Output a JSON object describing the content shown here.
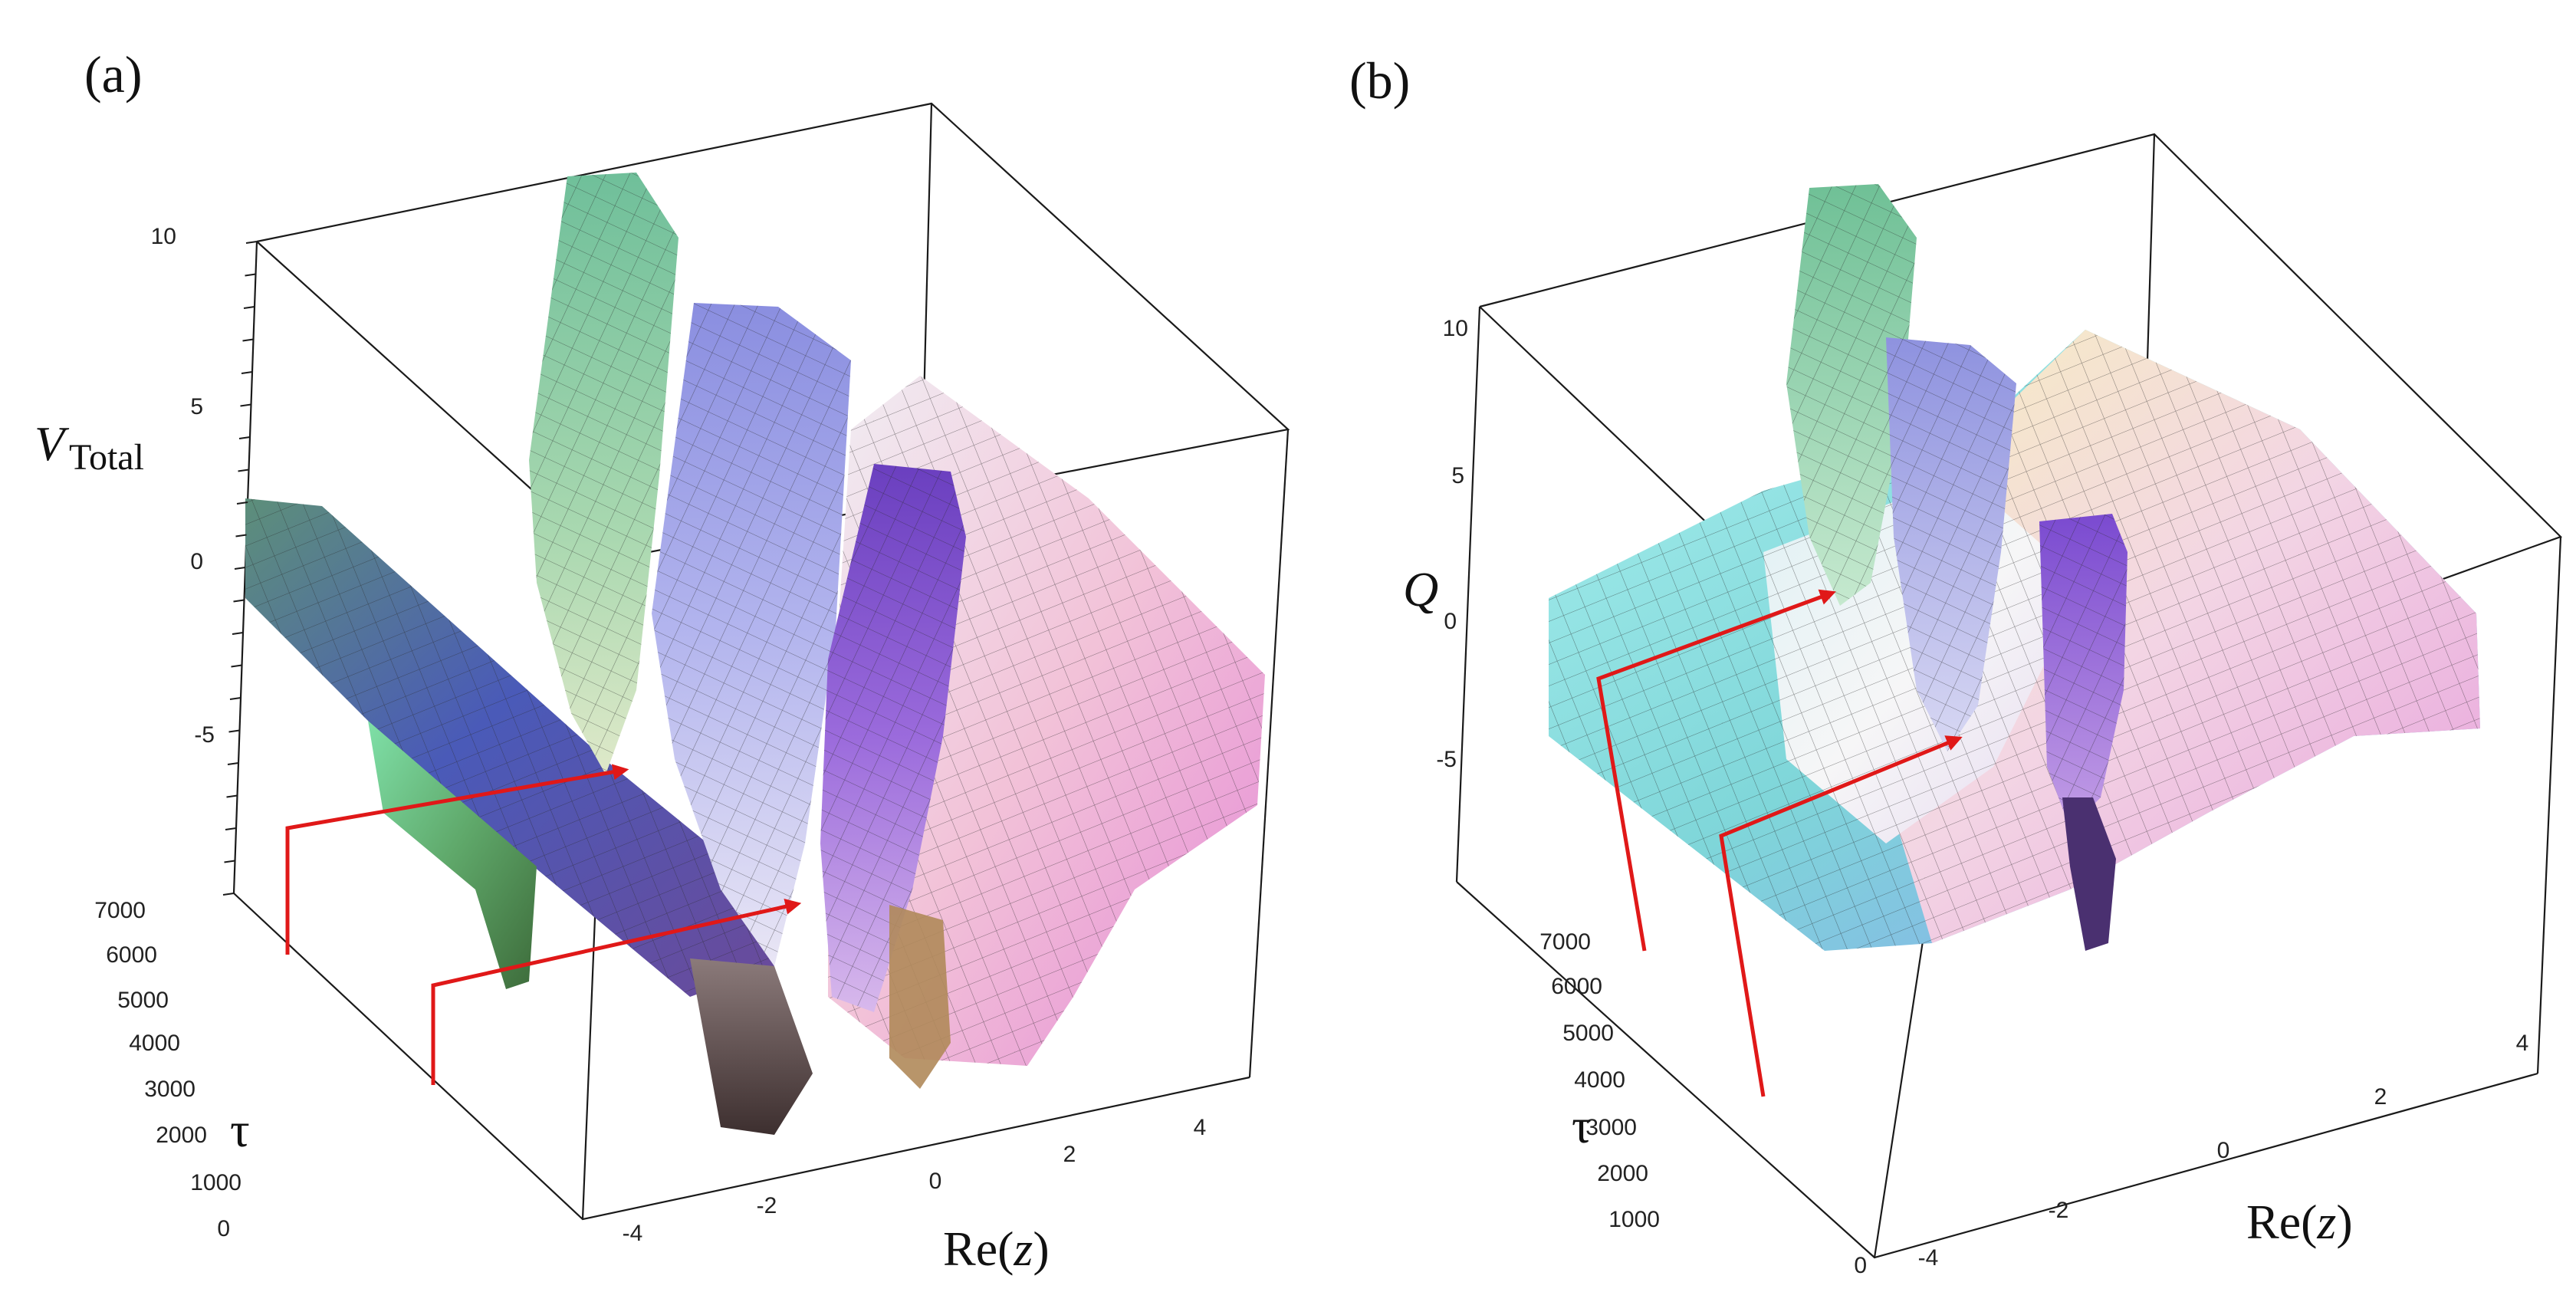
{
  "figure": {
    "accent_color": "#e01818"
  },
  "chart_data": [
    {
      "type": "surface3d",
      "panel_label": "(a)",
      "zlabel_main": "V",
      "zlabel_sub": "Total",
      "xlabel_main": "Re",
      "xlabel_var": "z",
      "ylabel": "τ",
      "x_ticks": [
        "-4",
        "-2",
        "0",
        "2",
        "4"
      ],
      "y_ticks": [
        "0",
        "1000",
        "2000",
        "3000",
        "4000",
        "5000",
        "6000",
        "7000"
      ],
      "z_ticks": [
        "10",
        "5",
        "0",
        "-5"
      ],
      "xlim": [
        -5,
        5
      ],
      "ylim": [
        0,
        7000
      ],
      "zlim": [
        -10,
        10
      ],
      "annotations": [
        "red arrow",
        "red arrow"
      ]
    },
    {
      "type": "surface3d",
      "panel_label": "(b)",
      "zlabel_main": "Q",
      "xlabel_main": "Re",
      "xlabel_var": "z",
      "ylabel": "τ",
      "x_ticks": [
        "-4",
        "-2",
        "0",
        "2",
        "4"
      ],
      "y_ticks": [
        "0",
        "1000",
        "2000",
        "3000",
        "4000",
        "5000",
        "6000",
        "7000"
      ],
      "z_ticks": [
        "10",
        "5",
        "0",
        "-5"
      ],
      "xlim": [
        -5,
        5
      ],
      "ylim": [
        0,
        7000
      ],
      "zlim": [
        -10,
        10
      ],
      "annotations": [
        "red arrow",
        "red arrow"
      ]
    }
  ]
}
